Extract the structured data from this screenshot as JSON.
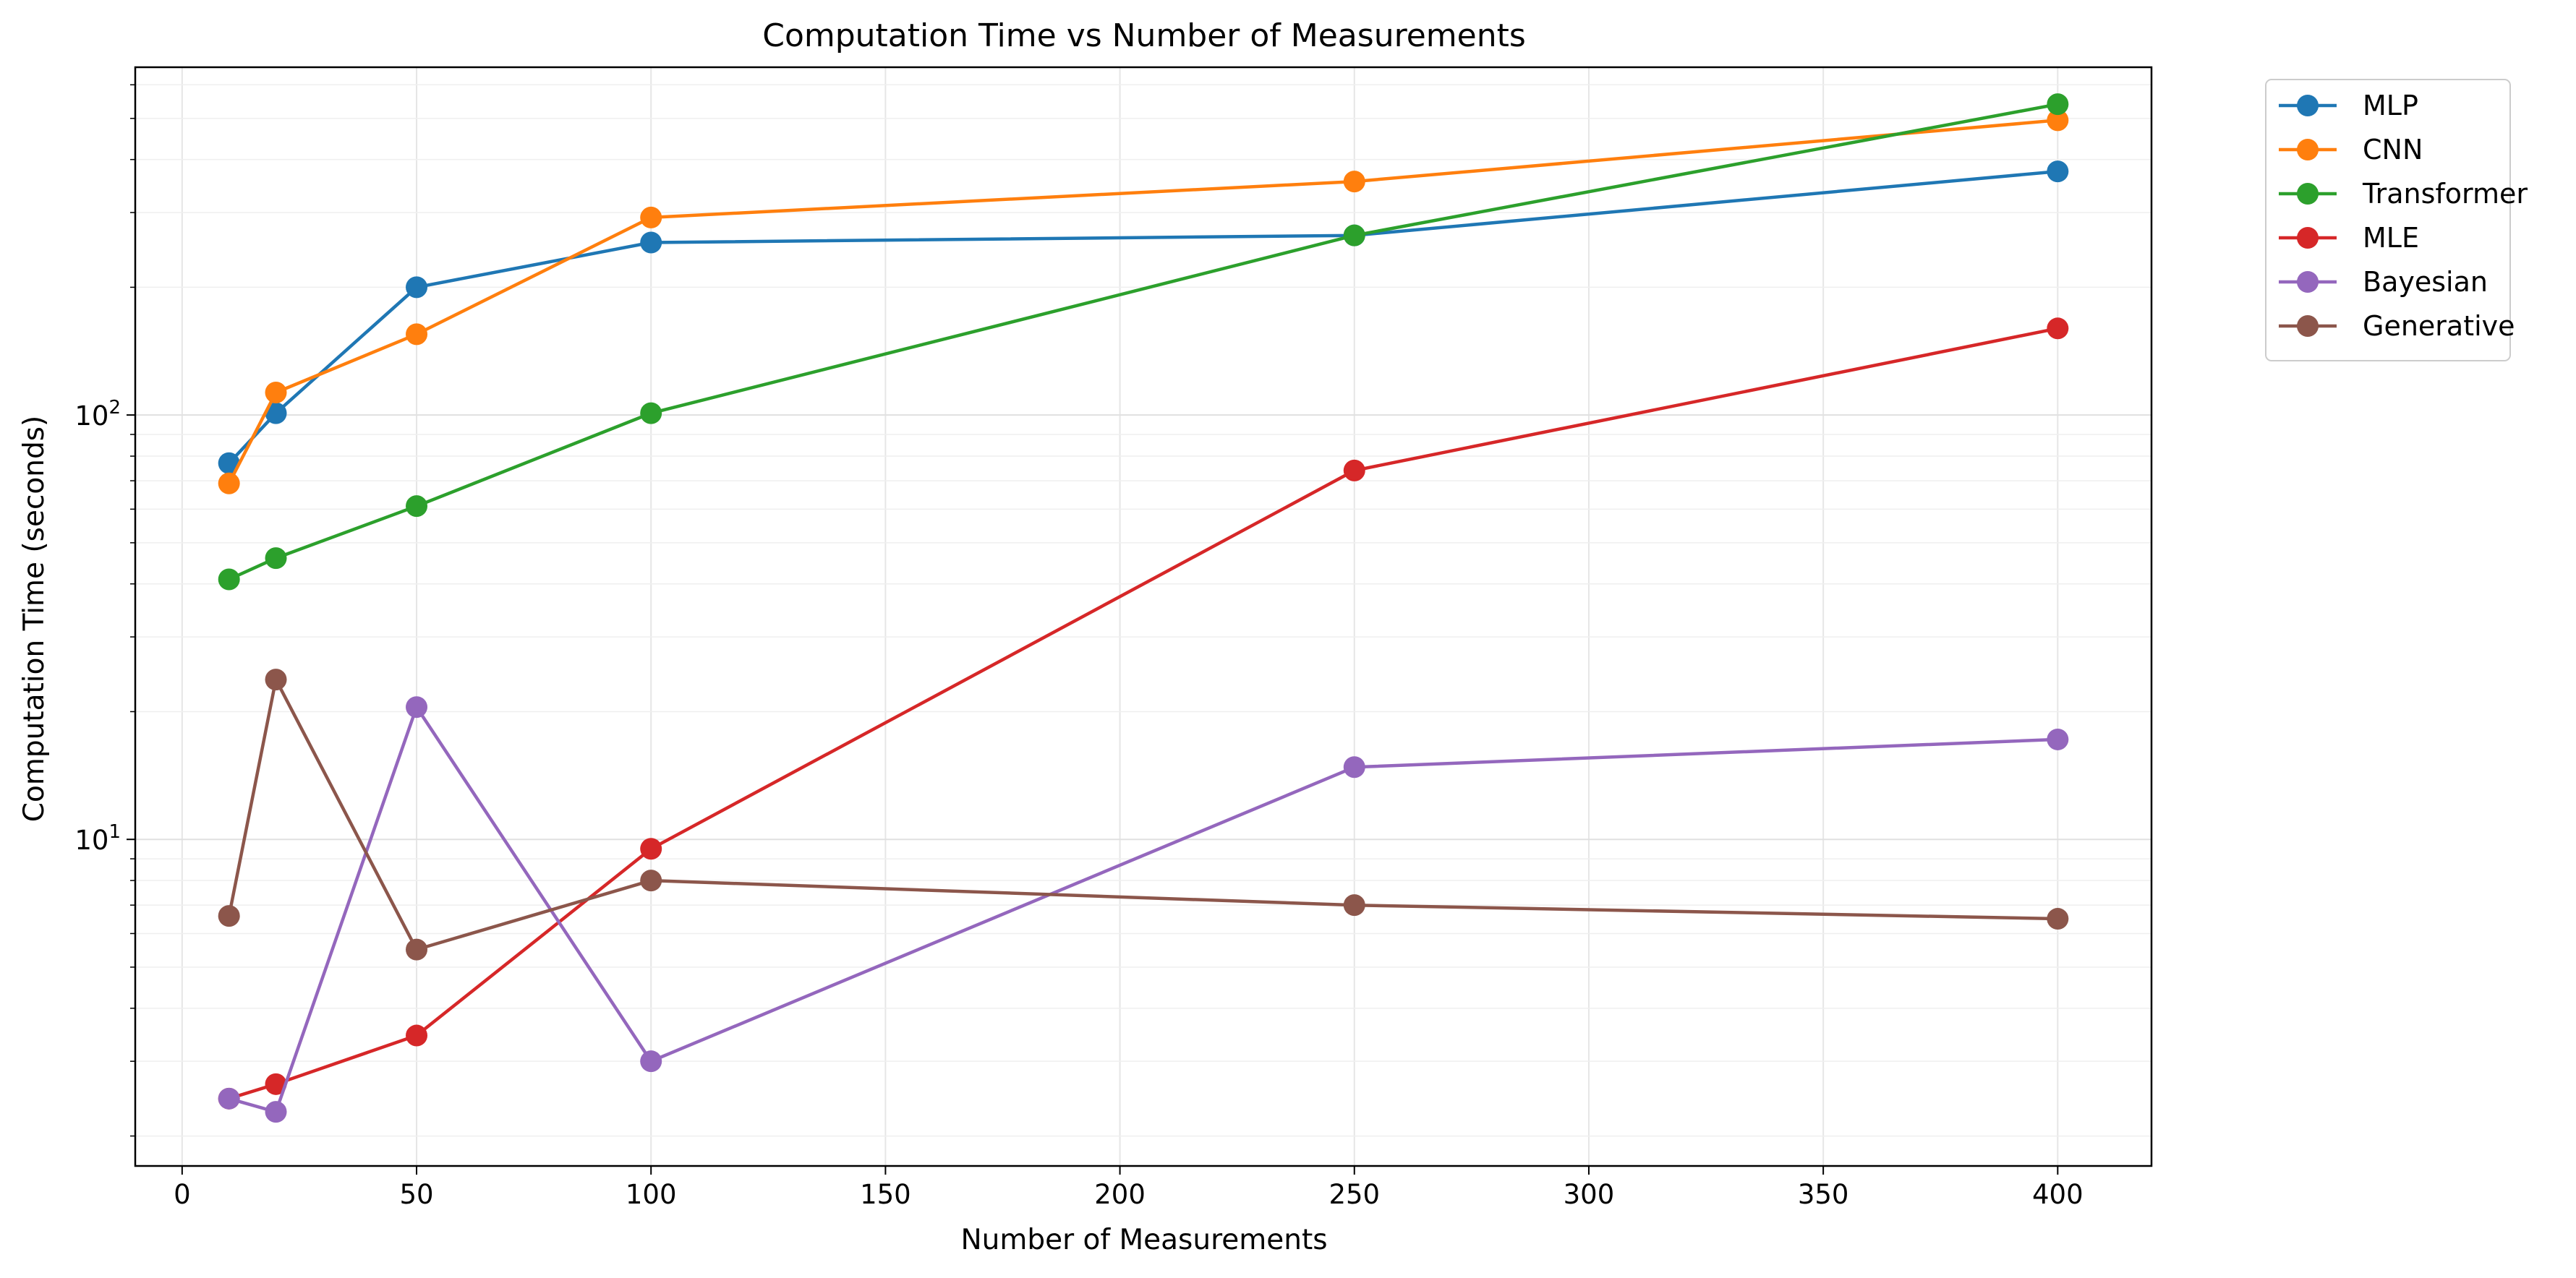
{
  "chart_data": {
    "type": "line",
    "title": "Computation Time vs Number of Measurements",
    "xlabel": "Number of Measurements",
    "ylabel": "Computation Time (seconds)",
    "x": [
      10,
      20,
      50,
      100,
      250,
      400
    ],
    "xlim": [
      -10,
      420
    ],
    "ylim": [
      1.7,
      660
    ],
    "yscale": "log",
    "xticks": [
      0,
      50,
      100,
      150,
      200,
      250,
      300,
      350,
      400
    ],
    "xtick_labels": [
      "0",
      "50",
      "100",
      "150",
      "200",
      "250",
      "300",
      "350",
      "400"
    ],
    "yticks": [
      {
        "value": 100,
        "base": "10",
        "exp": "2"
      },
      {
        "value": 10,
        "base": "10",
        "exp": "1"
      }
    ],
    "grid": true,
    "legend_position": "outside top-right",
    "series": [
      {
        "name": "MLP",
        "color": "#1f77b4",
        "values": [
          77,
          101,
          200,
          255,
          265,
          375
        ]
      },
      {
        "name": "CNN",
        "color": "#ff7f0e",
        "values": [
          69,
          113,
          155,
          292,
          355,
          495
        ]
      },
      {
        "name": "Transformer",
        "color": "#2ca02c",
        "values": [
          41,
          46,
          61,
          101,
          265,
          540
        ]
      },
      {
        "name": "MLE",
        "color": "#d62728",
        "values": [
          2.45,
          2.65,
          3.45,
          9.5,
          74,
          160
        ]
      },
      {
        "name": "Bayesian",
        "color": "#9467bd",
        "values": [
          2.45,
          2.28,
          20.5,
          3.0,
          14.8,
          17.2
        ]
      },
      {
        "name": "Generative",
        "color": "#8c564b",
        "values": [
          6.6,
          23.8,
          5.5,
          8.0,
          7.0,
          6.5
        ]
      }
    ]
  }
}
